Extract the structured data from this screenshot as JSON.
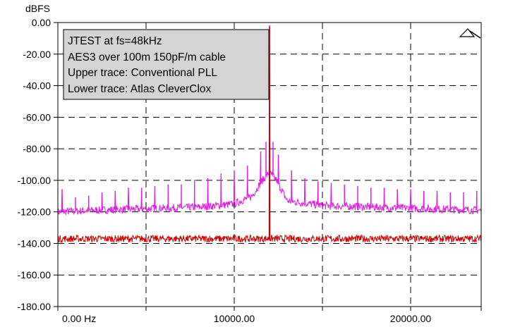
{
  "chart_data": {
    "type": "line",
    "ylabel": "dBFS",
    "xlabel": "",
    "xlim": [
      0,
      24000
    ],
    "ylim": [
      -180,
      0
    ],
    "x_ticks": [
      0,
      5000,
      10000,
      15000,
      20000,
      24000
    ],
    "x_tick_labels": [
      {
        "x": 0,
        "text": "0.00 Hz"
      },
      {
        "x": 10000,
        "text": "10000.00"
      },
      {
        "x": 20000,
        "text": "20000.00"
      }
    ],
    "y_ticks": [
      0,
      -20,
      -40,
      -60,
      -80,
      -100,
      -120,
      -140,
      -160,
      -180
    ],
    "y_tick_labels": [
      "0.00",
      "-20.00",
      "-40.00",
      "-60.00",
      "-80.00",
      "-100.00",
      "-120.00",
      "-140.00",
      "-160.00",
      "-180.00"
    ],
    "grid": true,
    "grid_style": "dashed",
    "legend_lines": [
      "JTEST at fs=48kHz",
      "AES3 over 100m 150pF/m cable",
      "Upper trace: Conventional PLL",
      "Lower trace: Atlas CleverClox"
    ],
    "legend_placement": "top-left",
    "series": [
      {
        "color": "#e020e0",
        "spike_x": [
          240,
          1000,
          1750,
          2500,
          3250,
          4000,
          4750,
          5500,
          6250,
          7000,
          7750,
          8500,
          9250,
          10000,
          10750,
          11500,
          11800,
          12000,
          12200,
          12500,
          13250,
          14000,
          14750,
          15500,
          16250,
          17000,
          17750,
          18500,
          19250,
          20000,
          20750,
          21500,
          22250,
          23000,
          23750
        ],
        "spike_y": [
          -106,
          -111,
          -110,
          -108,
          -107,
          -105,
          -105,
          -104,
          -103,
          -103,
          -100,
          -99,
          -96,
          -94,
          -91,
          -82,
          -76,
          -2,
          -76,
          -84,
          -94,
          -99,
          -101,
          -102,
          -103,
          -104,
          -105,
          -105,
          -106,
          -106,
          -107,
          -107,
          -108,
          -108,
          -107
        ],
        "floor": [
          [
            0,
            -120
          ],
          [
            2000,
            -119
          ],
          [
            5000,
            -118
          ],
          [
            8000,
            -117
          ],
          [
            10000,
            -115
          ],
          [
            11000,
            -110
          ],
          [
            11600,
            -100
          ],
          [
            12000,
            -95
          ],
          [
            12400,
            -100
          ],
          [
            13000,
            -113
          ],
          [
            15000,
            -116
          ],
          [
            18000,
            -117
          ],
          [
            21000,
            -118
          ],
          [
            24000,
            -119
          ]
        ]
      },
      {
        "color": "#cc0000",
        "spike_x": [
          12000
        ],
        "spike_y": [
          -3
        ],
        "floor": [
          [
            0,
            -137
          ],
          [
            12000,
            -137
          ],
          [
            24000,
            -137
          ]
        ]
      }
    ]
  }
}
